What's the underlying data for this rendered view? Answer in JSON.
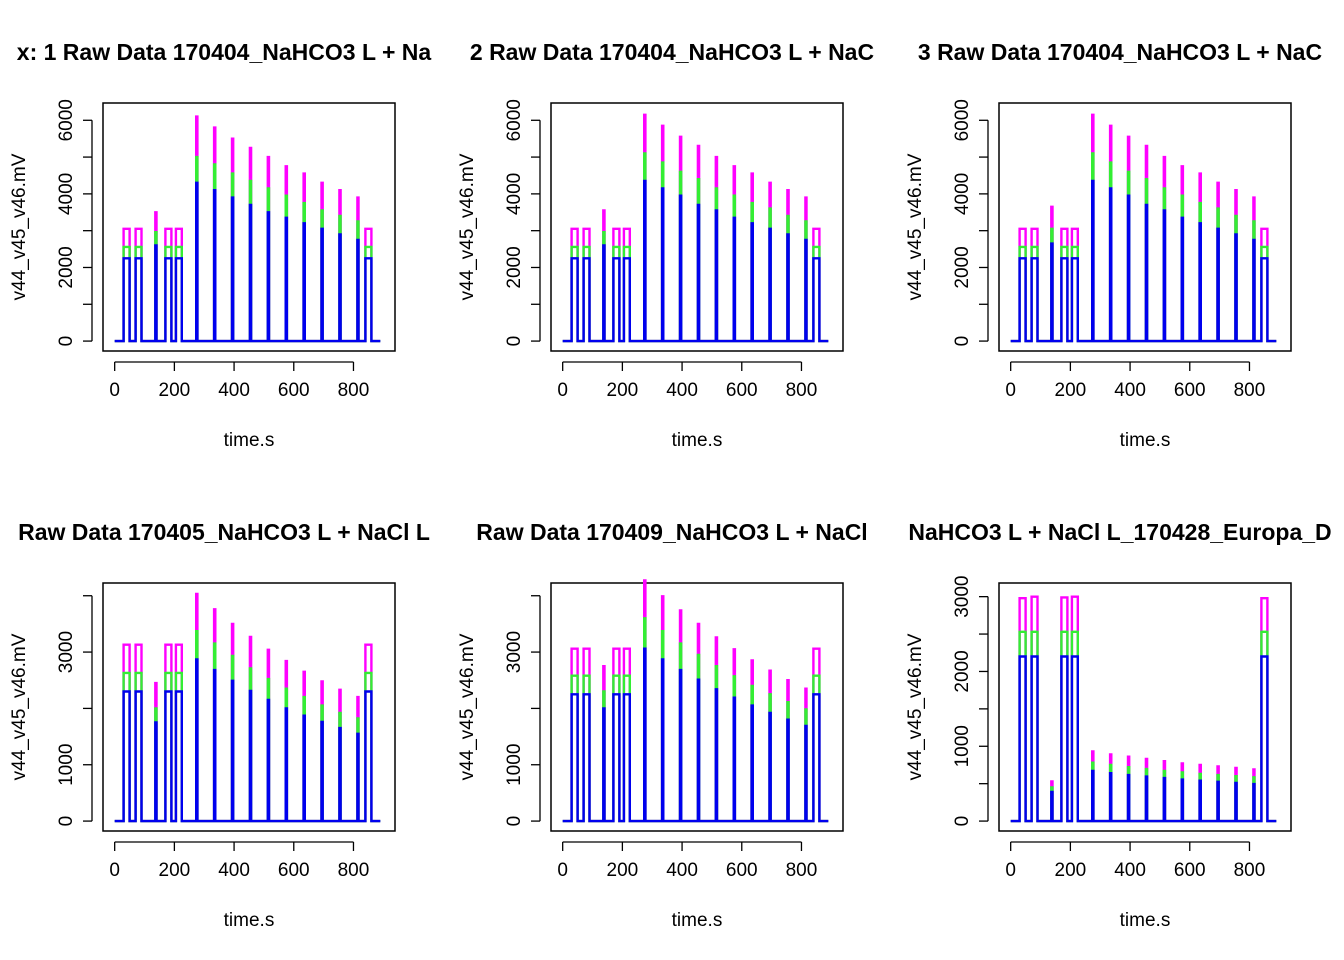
{
  "colors": {
    "v44": "#0000ee",
    "v45": "#33ee33",
    "v46": "#ff00ff",
    "axis": "#000000",
    "background": "#ffffff"
  },
  "chart_data": [
    {
      "type": "line",
      "title": "x: 1 Raw Data 170404_NaHCO3 L + Na",
      "xlabel": "time.s",
      "ylabel": "v44_v45_v46.mV",
      "xlim": [
        0,
        900
      ],
      "ylim": [
        0,
        6200
      ],
      "xticks": [
        0,
        200,
        400,
        600,
        800
      ],
      "yticks": [
        0,
        1000,
        2000,
        3000,
        4000,
        5000,
        6000
      ],
      "ytick_labels": [
        "0",
        "",
        "2000",
        "",
        "4000",
        "",
        "6000"
      ],
      "peaks": [
        {
          "t_start": 30,
          "t_end": 50,
          "v44": 2250,
          "v45": 2560,
          "v46": 3050
        },
        {
          "t_start": 70,
          "t_end": 90,
          "v44": 2250,
          "v45": 2560,
          "v46": 3050
        },
        {
          "t_start": 136,
          "t_end": 140,
          "v44": 2600,
          "v45": 2960,
          "v46": 3500
        },
        {
          "t_start": 170,
          "t_end": 190,
          "v44": 2250,
          "v45": 2560,
          "v46": 3050
        },
        {
          "t_start": 205,
          "t_end": 225,
          "v44": 2250,
          "v45": 2560,
          "v46": 3050
        },
        {
          "t_start": 273,
          "t_end": 277,
          "v44": 4300,
          "v45": 5000,
          "v46": 6100
        },
        {
          "t_start": 333,
          "t_end": 337,
          "v44": 4100,
          "v45": 4800,
          "v46": 5800
        },
        {
          "t_start": 393,
          "t_end": 397,
          "v44": 3900,
          "v45": 4550,
          "v46": 5500
        },
        {
          "t_start": 453,
          "t_end": 457,
          "v44": 3700,
          "v45": 4350,
          "v46": 5250
        },
        {
          "t_start": 513,
          "t_end": 517,
          "v44": 3500,
          "v45": 4150,
          "v46": 5000
        },
        {
          "t_start": 573,
          "t_end": 577,
          "v44": 3350,
          "v45": 3950,
          "v46": 4750
        },
        {
          "t_start": 633,
          "t_end": 637,
          "v44": 3200,
          "v45": 3750,
          "v46": 4550
        },
        {
          "t_start": 693,
          "t_end": 697,
          "v44": 3050,
          "v45": 3550,
          "v46": 4300
        },
        {
          "t_start": 753,
          "t_end": 757,
          "v44": 2900,
          "v45": 3400,
          "v46": 4100
        },
        {
          "t_start": 813,
          "t_end": 817,
          "v44": 2750,
          "v45": 3250,
          "v46": 3900
        },
        {
          "t_start": 840,
          "t_end": 860,
          "v44": 2250,
          "v45": 2560,
          "v46": 3050
        }
      ]
    },
    {
      "type": "line",
      "title": "2 Raw Data 170404_NaHCO3 L + NaC",
      "xlabel": "time.s",
      "ylabel": "v44_v45_v46.mV",
      "xlim": [
        0,
        900
      ],
      "ylim": [
        0,
        6200
      ],
      "xticks": [
        0,
        200,
        400,
        600,
        800
      ],
      "yticks": [
        0,
        1000,
        2000,
        3000,
        4000,
        5000,
        6000
      ],
      "ytick_labels": [
        "0",
        "",
        "2000",
        "",
        "4000",
        "",
        "6000"
      ],
      "peaks": [
        {
          "t_start": 30,
          "t_end": 50,
          "v44": 2250,
          "v45": 2560,
          "v46": 3050
        },
        {
          "t_start": 70,
          "t_end": 90,
          "v44": 2250,
          "v45": 2560,
          "v46": 3050
        },
        {
          "t_start": 136,
          "t_end": 140,
          "v44": 2600,
          "v45": 2960,
          "v46": 3550
        },
        {
          "t_start": 170,
          "t_end": 190,
          "v44": 2250,
          "v45": 2560,
          "v46": 3050
        },
        {
          "t_start": 205,
          "t_end": 225,
          "v44": 2250,
          "v45": 2560,
          "v46": 3050
        },
        {
          "t_start": 273,
          "t_end": 277,
          "v44": 4350,
          "v45": 5100,
          "v46": 6150
        },
        {
          "t_start": 333,
          "t_end": 337,
          "v44": 4150,
          "v45": 4850,
          "v46": 5850
        },
        {
          "t_start": 393,
          "t_end": 397,
          "v44": 3950,
          "v45": 4600,
          "v46": 5550
        },
        {
          "t_start": 453,
          "t_end": 457,
          "v44": 3700,
          "v45": 4400,
          "v46": 5300
        },
        {
          "t_start": 513,
          "t_end": 517,
          "v44": 3550,
          "v45": 4150,
          "v46": 5000
        },
        {
          "t_start": 573,
          "t_end": 577,
          "v44": 3350,
          "v45": 3950,
          "v46": 4750
        },
        {
          "t_start": 633,
          "t_end": 637,
          "v44": 3200,
          "v45": 3750,
          "v46": 4550
        },
        {
          "t_start": 693,
          "t_end": 697,
          "v44": 3050,
          "v45": 3600,
          "v46": 4300
        },
        {
          "t_start": 753,
          "t_end": 757,
          "v44": 2900,
          "v45": 3400,
          "v46": 4100
        },
        {
          "t_start": 813,
          "t_end": 817,
          "v44": 2750,
          "v45": 3250,
          "v46": 3900
        },
        {
          "t_start": 840,
          "t_end": 860,
          "v44": 2250,
          "v45": 2560,
          "v46": 3050
        }
      ]
    },
    {
      "type": "line",
      "title": "3 Raw Data 170404_NaHCO3 L + NaC",
      "xlabel": "time.s",
      "ylabel": "v44_v45_v46.mV",
      "xlim": [
        0,
        900
      ],
      "ylim": [
        0,
        6200
      ],
      "xticks": [
        0,
        200,
        400,
        600,
        800
      ],
      "yticks": [
        0,
        1000,
        2000,
        3000,
        4000,
        5000,
        6000
      ],
      "ytick_labels": [
        "0",
        "",
        "2000",
        "",
        "4000",
        "",
        "6000"
      ],
      "peaks": [
        {
          "t_start": 30,
          "t_end": 50,
          "v44": 2250,
          "v45": 2560,
          "v46": 3050
        },
        {
          "t_start": 70,
          "t_end": 90,
          "v44": 2250,
          "v45": 2560,
          "v46": 3050
        },
        {
          "t_start": 136,
          "t_end": 140,
          "v44": 2650,
          "v45": 3050,
          "v46": 3650
        },
        {
          "t_start": 170,
          "t_end": 190,
          "v44": 2250,
          "v45": 2560,
          "v46": 3050
        },
        {
          "t_start": 205,
          "t_end": 225,
          "v44": 2250,
          "v45": 2560,
          "v46": 3050
        },
        {
          "t_start": 273,
          "t_end": 277,
          "v44": 4350,
          "v45": 5100,
          "v46": 6150
        },
        {
          "t_start": 333,
          "t_end": 337,
          "v44": 4150,
          "v45": 4850,
          "v46": 5850
        },
        {
          "t_start": 393,
          "t_end": 397,
          "v44": 3950,
          "v45": 4600,
          "v46": 5550
        },
        {
          "t_start": 453,
          "t_end": 457,
          "v44": 3700,
          "v45": 4400,
          "v46": 5300
        },
        {
          "t_start": 513,
          "t_end": 517,
          "v44": 3550,
          "v45": 4150,
          "v46": 5000
        },
        {
          "t_start": 573,
          "t_end": 577,
          "v44": 3350,
          "v45": 3950,
          "v46": 4750
        },
        {
          "t_start": 633,
          "t_end": 637,
          "v44": 3200,
          "v45": 3750,
          "v46": 4550
        },
        {
          "t_start": 693,
          "t_end": 697,
          "v44": 3050,
          "v45": 3600,
          "v46": 4300
        },
        {
          "t_start": 753,
          "t_end": 757,
          "v44": 2900,
          "v45": 3400,
          "v46": 4100
        },
        {
          "t_start": 813,
          "t_end": 817,
          "v44": 2750,
          "v45": 3250,
          "v46": 3900
        },
        {
          "t_start": 840,
          "t_end": 860,
          "v44": 2250,
          "v45": 2560,
          "v46": 3050
        }
      ]
    },
    {
      "type": "line",
      "title": "Raw Data 170405_NaHCO3 L + NaCl L",
      "xlabel": "time.s",
      "ylabel": "v44_v45_v46.mV",
      "xlim": [
        0,
        900
      ],
      "ylim": [
        0,
        4050
      ],
      "xticks": [
        0,
        200,
        400,
        600,
        800
      ],
      "yticks": [
        0,
        1000,
        2000,
        3000,
        4000
      ],
      "ytick_labels": [
        "0",
        "1000",
        "",
        "3000",
        ""
      ],
      "peaks": [
        {
          "t_start": 30,
          "t_end": 50,
          "v44": 2300,
          "v45": 2630,
          "v46": 3130
        },
        {
          "t_start": 70,
          "t_end": 90,
          "v44": 2300,
          "v45": 2630,
          "v46": 3130
        },
        {
          "t_start": 136,
          "t_end": 140,
          "v44": 1750,
          "v45": 2000,
          "v46": 2450
        },
        {
          "t_start": 170,
          "t_end": 190,
          "v44": 2300,
          "v45": 2630,
          "v46": 3130
        },
        {
          "t_start": 205,
          "t_end": 225,
          "v44": 2300,
          "v45": 2630,
          "v46": 3130
        },
        {
          "t_start": 273,
          "t_end": 277,
          "v44": 2870,
          "v45": 3370,
          "v46": 4030
        },
        {
          "t_start": 333,
          "t_end": 337,
          "v44": 2680,
          "v45": 3150,
          "v46": 3760
        },
        {
          "t_start": 393,
          "t_end": 397,
          "v44": 2490,
          "v45": 2930,
          "v46": 3500
        },
        {
          "t_start": 453,
          "t_end": 457,
          "v44": 2310,
          "v45": 2710,
          "v46": 3270
        },
        {
          "t_start": 513,
          "t_end": 517,
          "v44": 2150,
          "v45": 2520,
          "v46": 3040
        },
        {
          "t_start": 573,
          "t_end": 577,
          "v44": 2000,
          "v45": 2350,
          "v46": 2840
        },
        {
          "t_start": 633,
          "t_end": 637,
          "v44": 1870,
          "v45": 2200,
          "v46": 2650
        },
        {
          "t_start": 693,
          "t_end": 697,
          "v44": 1760,
          "v45": 2050,
          "v46": 2480
        },
        {
          "t_start": 753,
          "t_end": 757,
          "v44": 1650,
          "v45": 1920,
          "v46": 2330
        },
        {
          "t_start": 813,
          "t_end": 817,
          "v44": 1550,
          "v45": 1820,
          "v46": 2200
        },
        {
          "t_start": 840,
          "t_end": 860,
          "v44": 2300,
          "v45": 2630,
          "v46": 3130
        }
      ]
    },
    {
      "type": "line",
      "title": "Raw Data 170409_NaHCO3 L + NaCl",
      "xlabel": "time.s",
      "ylabel": "v44_v45_v46.mV",
      "xlim": [
        0,
        900
      ],
      "ylim": [
        0,
        4050
      ],
      "xticks": [
        0,
        200,
        400,
        600,
        800
      ],
      "yticks": [
        0,
        1000,
        2000,
        3000,
        4000
      ],
      "ytick_labels": [
        "0",
        "1000",
        "",
        "3000",
        ""
      ],
      "peaks": [
        {
          "t_start": 30,
          "t_end": 50,
          "v44": 2250,
          "v45": 2580,
          "v46": 3060
        },
        {
          "t_start": 70,
          "t_end": 90,
          "v44": 2250,
          "v45": 2580,
          "v46": 3060
        },
        {
          "t_start": 136,
          "t_end": 140,
          "v44": 2000,
          "v45": 2300,
          "v46": 2750
        },
        {
          "t_start": 170,
          "t_end": 190,
          "v44": 2250,
          "v45": 2580,
          "v46": 3060
        },
        {
          "t_start": 205,
          "t_end": 225,
          "v44": 2250,
          "v45": 2580,
          "v46": 3060
        },
        {
          "t_start": 273,
          "t_end": 277,
          "v44": 3060,
          "v45": 3600,
          "v46": 4270
        },
        {
          "t_start": 333,
          "t_end": 337,
          "v44": 2870,
          "v45": 3370,
          "v46": 3990
        },
        {
          "t_start": 393,
          "t_end": 397,
          "v44": 2680,
          "v45": 3150,
          "v46": 3740
        },
        {
          "t_start": 453,
          "t_end": 457,
          "v44": 2510,
          "v45": 2950,
          "v46": 3500
        },
        {
          "t_start": 513,
          "t_end": 517,
          "v44": 2340,
          "v45": 2750,
          "v46": 3260
        },
        {
          "t_start": 573,
          "t_end": 577,
          "v44": 2190,
          "v45": 2570,
          "v46": 3050
        },
        {
          "t_start": 633,
          "t_end": 637,
          "v44": 2050,
          "v45": 2400,
          "v46": 2850
        },
        {
          "t_start": 693,
          "t_end": 697,
          "v44": 1920,
          "v45": 2250,
          "v46": 2670
        },
        {
          "t_start": 753,
          "t_end": 757,
          "v44": 1800,
          "v45": 2110,
          "v46": 2500
        },
        {
          "t_start": 813,
          "t_end": 817,
          "v44": 1690,
          "v45": 1980,
          "v46": 2350
        },
        {
          "t_start": 840,
          "t_end": 860,
          "v44": 2250,
          "v45": 2580,
          "v46": 3060
        }
      ]
    },
    {
      "type": "line",
      "title": "NaHCO3 L + NaCl L_170428_Europa_D",
      "xlabel": "time.s",
      "ylabel": "v44_v45_v46.mV",
      "xlim": [
        0,
        900
      ],
      "ylim": [
        0,
        3050
      ],
      "xticks": [
        0,
        200,
        400,
        600,
        800
      ],
      "yticks": [
        0,
        500,
        1000,
        1500,
        2000,
        2500,
        3000
      ],
      "ytick_labels": [
        "0",
        "",
        "1000",
        "",
        "2000",
        "",
        "3000"
      ],
      "peaks": [
        {
          "t_start": 30,
          "t_end": 50,
          "v44": 2200,
          "v45": 2530,
          "v46": 2980
        },
        {
          "t_start": 70,
          "t_end": 90,
          "v44": 2200,
          "v45": 2530,
          "v46": 3000
        },
        {
          "t_start": 136,
          "t_end": 140,
          "v44": 390,
          "v45": 450,
          "v46": 530
        },
        {
          "t_start": 170,
          "t_end": 190,
          "v44": 2200,
          "v45": 2530,
          "v46": 2990
        },
        {
          "t_start": 205,
          "t_end": 225,
          "v44": 2200,
          "v45": 2530,
          "v46": 3000
        },
        {
          "t_start": 273,
          "t_end": 277,
          "v44": 670,
          "v45": 780,
          "v46": 930
        },
        {
          "t_start": 333,
          "t_end": 337,
          "v44": 640,
          "v45": 750,
          "v46": 890
        },
        {
          "t_start": 393,
          "t_end": 397,
          "v44": 615,
          "v45": 720,
          "v46": 860
        },
        {
          "t_start": 453,
          "t_end": 457,
          "v44": 595,
          "v45": 695,
          "v46": 830
        },
        {
          "t_start": 513,
          "t_end": 517,
          "v44": 575,
          "v45": 670,
          "v46": 800
        },
        {
          "t_start": 573,
          "t_end": 577,
          "v44": 555,
          "v45": 650,
          "v46": 770
        },
        {
          "t_start": 633,
          "t_end": 637,
          "v44": 540,
          "v45": 630,
          "v46": 750
        },
        {
          "t_start": 693,
          "t_end": 697,
          "v44": 525,
          "v45": 615,
          "v46": 730
        },
        {
          "t_start": 753,
          "t_end": 757,
          "v44": 510,
          "v45": 600,
          "v46": 710
        },
        {
          "t_start": 813,
          "t_end": 817,
          "v44": 495,
          "v45": 585,
          "v46": 690
        },
        {
          "t_start": 840,
          "t_end": 860,
          "v44": 2200,
          "v45": 2530,
          "v46": 2980
        }
      ]
    }
  ]
}
